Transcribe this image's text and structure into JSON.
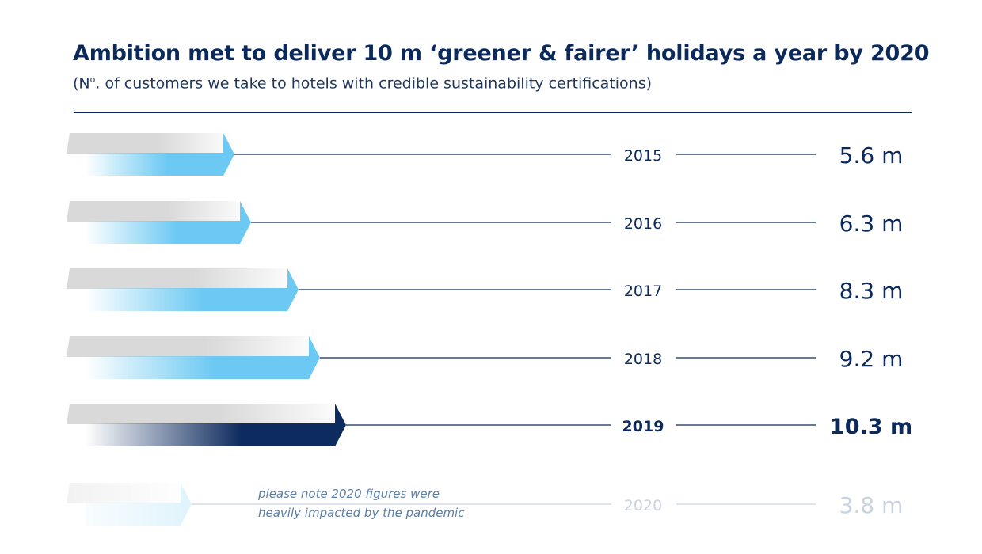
{
  "header": {
    "title": "Ambition met to deliver 10 m ‘greener & fairer’ holidays a year by 2020",
    "subtitle_prefix": "(N",
    "subtitle_sup": "o",
    "subtitle_rest": ". of customers we take to hotels with credible sustainability certifications)"
  },
  "note": {
    "line1": "please note 2020 figures were",
    "line2": "heavily impacted by the pandemic"
  },
  "colors": {
    "arrow_light": "#6cc9f3",
    "arrow_dark": "#0d2b5e",
    "arrow_faded": "#dff3fc",
    "grey_bar": "#d9d9d9",
    "text_dark": "#0b2a5b",
    "text_faded": "#c9d3df"
  },
  "chart_data": {
    "type": "bar",
    "orientation": "horizontal",
    "title": "Ambition met to deliver 10 m ‘greener & fairer’ holidays a year by 2020",
    "subtitle": "(No. of customers we take to hotels with credible sustainability certifications)",
    "categories": [
      "2015",
      "2016",
      "2017",
      "2018",
      "2019",
      "2020"
    ],
    "values": [
      5.6,
      6.3,
      8.3,
      9.2,
      10.3,
      3.8
    ],
    "value_labels": [
      "5.6 m",
      "6.3 m",
      "8.3 m",
      "9.2 m",
      "10.3 m",
      "3.8 m"
    ],
    "unit": "m",
    "highlight": "2019",
    "faded": "2020",
    "legend": "none",
    "grid": false
  }
}
